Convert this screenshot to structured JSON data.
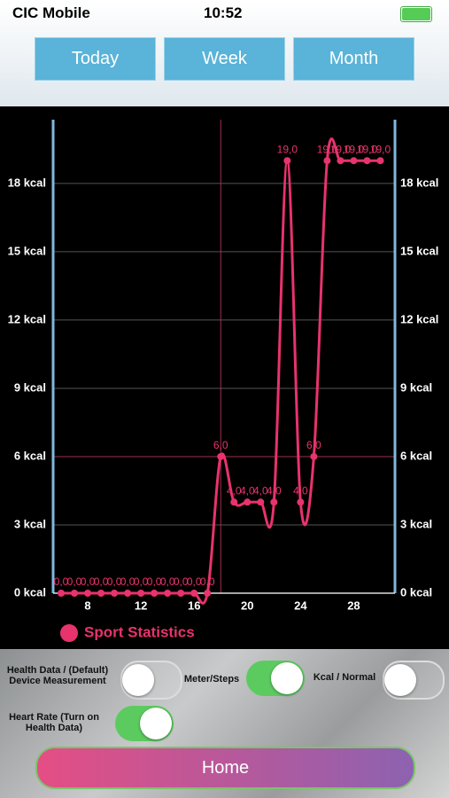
{
  "status_bar": {
    "carrier": "CIC Mobile",
    "time": "10:52"
  },
  "tabs": [
    "Today",
    "Week",
    "Month"
  ],
  "chart_data": {
    "type": "line",
    "x": [
      6,
      7,
      8,
      9,
      10,
      11,
      12,
      13,
      14,
      15,
      16,
      17,
      18,
      19,
      20,
      21,
      22,
      23,
      24,
      25,
      26,
      27,
      28,
      29,
      30
    ],
    "series": [
      {
        "name": "Sport Statistics",
        "color": "#e8336d",
        "values": [
          0,
          0,
          0,
          0,
          0,
          0,
          0,
          0,
          0,
          0,
          0,
          0,
          6,
          4,
          4,
          4,
          4,
          19,
          4,
          6,
          19,
          19,
          19,
          19,
          19
        ],
        "value_labels": [
          "0,0",
          "0,0",
          "0,0",
          "0,0",
          "0,0",
          "0,0",
          "0,0",
          "0,0",
          "0,0",
          "0,0",
          "0,0",
          "0,0",
          "6,0",
          "4,0",
          "4,0",
          "4,0",
          "4,0",
          "19,0",
          "4,0",
          "6,0",
          "19,0",
          "19,0",
          "19,0",
          "19,0",
          "19,0"
        ]
      }
    ],
    "xlim": [
      5.4,
      31.1
    ],
    "xticks": [
      8,
      12,
      16,
      20,
      24,
      28
    ],
    "ylim": [
      0,
      20.8
    ],
    "yticks": [
      {
        "value": 0,
        "label": "0 kcal"
      },
      {
        "value": 3,
        "label": "3 kcal"
      },
      {
        "value": 6,
        "label": "6 kcal"
      },
      {
        "value": 9,
        "label": "9 kcal"
      },
      {
        "value": 12,
        "label": "12 kcal"
      },
      {
        "value": 15,
        "label": "15 kcal"
      },
      {
        "value": 18,
        "label": "18 kcal"
      }
    ],
    "grid": true,
    "highlight_x": 18,
    "highlight_y": 6
  },
  "toggles": [
    {
      "label": "Health Data / (Default) Device Measurement",
      "on": false
    },
    {
      "label": "Meter/Steps",
      "on": true
    },
    {
      "label": "Kcal / Normal",
      "on": false
    },
    {
      "label": "Heart Rate (Turn on Health Data)",
      "on": true
    }
  ],
  "home_button": "Home"
}
